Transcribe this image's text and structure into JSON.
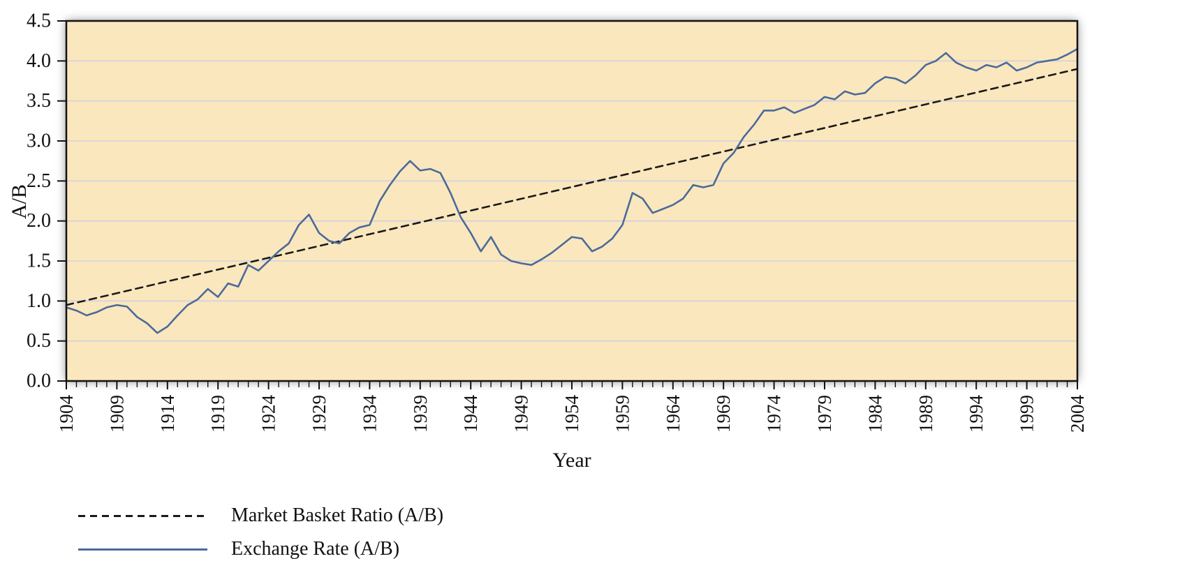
{
  "chart_data": {
    "type": "line",
    "title": "",
    "xlabel": "Year",
    "ylabel": "A/B",
    "xlim": [
      1904,
      2004
    ],
    "ylim": [
      0.0,
      4.5
    ],
    "grid": true,
    "legend_position": "bottom-left",
    "plot_bg": "#fbe7bd",
    "grid_color": "#cfd2df",
    "frame_color": "#111111",
    "yticks": [
      0.0,
      0.5,
      1.0,
      1.5,
      2.0,
      2.5,
      3.0,
      3.5,
      4.0,
      4.5
    ],
    "ytick_labels": [
      "0.0",
      "0.5",
      "1.0",
      "1.5",
      "2.0",
      "2.5",
      "3.0",
      "3.5",
      "4.0",
      "4.5"
    ],
    "xticks": [
      1904,
      1909,
      1914,
      1919,
      1924,
      1929,
      1934,
      1939,
      1944,
      1949,
      1954,
      1959,
      1964,
      1969,
      1974,
      1979,
      1984,
      1989,
      1994,
      1999,
      2004
    ],
    "xtick_labels": [
      "1904",
      "1909",
      "1914",
      "1919",
      "1924",
      "1929",
      "1934",
      "1939",
      "1944",
      "1949",
      "1954",
      "1959",
      "1964",
      "1969",
      "1974",
      "1979",
      "1984",
      "1989",
      "1994",
      "1999",
      "2004"
    ],
    "xtick_label_step": 5,
    "series": [
      {
        "name": "Market Basket Ratio (A/B)",
        "style": "dashed",
        "color": "#1a1a1a",
        "x": [
          1904,
          2004
        ],
        "values": [
          0.95,
          3.9
        ]
      },
      {
        "name": "Exchange Rate (A/B)",
        "style": "solid",
        "color": "#4a6a9b",
        "x": [
          1904,
          1905,
          1906,
          1907,
          1908,
          1909,
          1910,
          1911,
          1912,
          1913,
          1914,
          1915,
          1916,
          1917,
          1918,
          1919,
          1920,
          1921,
          1922,
          1923,
          1924,
          1925,
          1926,
          1927,
          1928,
          1929,
          1930,
          1931,
          1932,
          1933,
          1934,
          1935,
          1936,
          1937,
          1938,
          1939,
          1940,
          1941,
          1942,
          1943,
          1944,
          1945,
          1946,
          1947,
          1948,
          1949,
          1950,
          1951,
          1952,
          1953,
          1954,
          1955,
          1956,
          1957,
          1958,
          1959,
          1960,
          1961,
          1962,
          1963,
          1964,
          1965,
          1966,
          1967,
          1968,
          1969,
          1970,
          1971,
          1972,
          1973,
          1974,
          1975,
          1976,
          1977,
          1978,
          1979,
          1980,
          1981,
          1982,
          1983,
          1984,
          1985,
          1986,
          1987,
          1988,
          1989,
          1990,
          1991,
          1992,
          1993,
          1994,
          1995,
          1996,
          1997,
          1998,
          1999,
          2000,
          2001,
          2002,
          2003,
          2004
        ],
        "values": [
          0.92,
          0.88,
          0.82,
          0.86,
          0.92,
          0.95,
          0.93,
          0.8,
          0.72,
          0.6,
          0.68,
          0.82,
          0.95,
          1.02,
          1.15,
          1.05,
          1.22,
          1.18,
          1.45,
          1.38,
          1.5,
          1.62,
          1.72,
          1.95,
          2.08,
          1.85,
          1.75,
          1.72,
          1.85,
          1.92,
          1.95,
          2.25,
          2.45,
          2.62,
          2.75,
          2.63,
          2.65,
          2.6,
          2.35,
          2.05,
          1.85,
          1.62,
          1.8,
          1.58,
          1.5,
          1.47,
          1.45,
          1.52,
          1.6,
          1.7,
          1.8,
          1.78,
          1.62,
          1.68,
          1.78,
          1.95,
          2.35,
          2.28,
          2.1,
          2.15,
          2.2,
          2.28,
          2.45,
          2.42,
          2.45,
          2.72,
          2.85,
          3.05,
          3.2,
          3.38,
          3.38,
          3.42,
          3.35,
          3.4,
          3.45,
          3.55,
          3.52,
          3.62,
          3.58,
          3.6,
          3.72,
          3.8,
          3.78,
          3.72,
          3.82,
          3.95,
          4.0,
          4.1,
          3.98,
          3.92,
          3.88,
          3.95,
          3.92,
          3.98,
          3.88,
          3.92,
          3.98,
          4.0,
          4.02,
          4.08,
          4.15
        ]
      }
    ]
  }
}
